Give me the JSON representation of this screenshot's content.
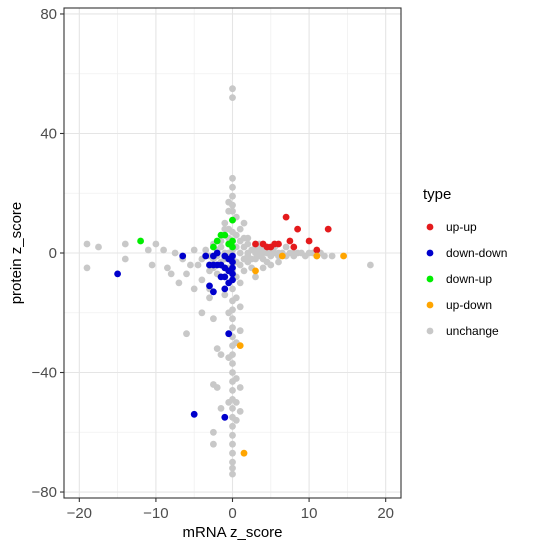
{
  "chart_data": {
    "type": "scatter",
    "xlabel": "mRNA z_score",
    "ylabel": "protein z_score",
    "xlim": [
      -22,
      22
    ],
    "ylim": [
      -82,
      82
    ],
    "x_ticks": [
      -20,
      -10,
      0,
      10,
      20
    ],
    "x_tick_labels": [
      "−20",
      "−10",
      "0",
      "10",
      "20"
    ],
    "y_ticks": [
      -80,
      -40,
      0,
      40,
      80
    ],
    "y_tick_labels": [
      "−80",
      "−40",
      "0",
      "40",
      "80"
    ],
    "grid": true,
    "legend": {
      "title": "type",
      "position": "right",
      "entries": [
        {
          "label": "up-up",
          "color": "#e41a1c"
        },
        {
          "label": "down-down",
          "color": "#0000cc"
        },
        {
          "label": "down-up",
          "color": "#00ee00"
        },
        {
          "label": "up-down",
          "color": "#ffa500"
        },
        {
          "label": "unchange",
          "color": "#c8c8c8"
        }
      ]
    },
    "series": [
      {
        "name": "unchange",
        "color": "#c8c8c8",
        "points": [
          [
            -19,
            3
          ],
          [
            -19,
            -5
          ],
          [
            -17.5,
            2
          ],
          [
            -14,
            -2
          ],
          [
            -14,
            3
          ],
          [
            -11,
            1
          ],
          [
            -10.5,
            -4
          ],
          [
            -10,
            3
          ],
          [
            -9,
            1
          ],
          [
            -8.5,
            -5
          ],
          [
            -8,
            -7
          ],
          [
            -7.5,
            0
          ],
          [
            -7,
            -10
          ],
          [
            -6.5,
            -2
          ],
          [
            -6,
            -7
          ],
          [
            -6,
            -27
          ],
          [
            -5.5,
            -4
          ],
          [
            -5,
            -12
          ],
          [
            -5,
            1
          ],
          [
            -4.5,
            -4
          ],
          [
            -4,
            -2
          ],
          [
            -4,
            -9
          ],
          [
            -4,
            -20
          ],
          [
            -3.5,
            1
          ],
          [
            -3,
            -1
          ],
          [
            -3,
            -4
          ],
          [
            -3,
            -6
          ],
          [
            -3,
            -12
          ],
          [
            -3,
            -15
          ],
          [
            -2.5,
            -2
          ],
          [
            -2.5,
            -5
          ],
          [
            -2.5,
            3
          ],
          [
            -2.5,
            -22
          ],
          [
            -2.5,
            -44
          ],
          [
            -2.5,
            -60
          ],
          [
            -2.5,
            -64
          ],
          [
            -2,
            -1
          ],
          [
            -2,
            1
          ],
          [
            -2,
            -7
          ],
          [
            -2,
            -32
          ],
          [
            -2,
            -45
          ],
          [
            -1.5,
            2
          ],
          [
            -1.5,
            -3
          ],
          [
            -1.5,
            4
          ],
          [
            -1.5,
            -34
          ],
          [
            -1.5,
            -52
          ],
          [
            -1,
            0
          ],
          [
            -1,
            -1
          ],
          [
            -1,
            -2
          ],
          [
            -1,
            -8
          ],
          [
            -1,
            -14
          ],
          [
            -1,
            8
          ],
          [
            -1,
            10
          ],
          [
            -0.5,
            0
          ],
          [
            -0.5,
            3
          ],
          [
            -0.5,
            -5
          ],
          [
            -0.5,
            5
          ],
          [
            -0.5,
            8
          ],
          [
            -0.5,
            14
          ],
          [
            -0.5,
            17
          ],
          [
            -0.5,
            -20
          ],
          [
            -0.5,
            -35
          ],
          [
            -0.5,
            -50
          ],
          [
            0,
            55
          ],
          [
            0,
            52
          ],
          [
            0,
            25
          ],
          [
            0,
            22
          ],
          [
            0,
            19
          ],
          [
            0,
            16
          ],
          [
            0,
            14
          ],
          [
            0,
            11
          ],
          [
            0,
            7
          ],
          [
            0,
            4
          ],
          [
            0,
            1
          ],
          [
            0,
            -2
          ],
          [
            0,
            -3
          ],
          [
            0,
            -6
          ],
          [
            0,
            -9
          ],
          [
            0,
            -12
          ],
          [
            0,
            -16
          ],
          [
            0,
            -19
          ],
          [
            0,
            -22
          ],
          [
            0,
            -25
          ],
          [
            0,
            -28
          ],
          [
            0,
            -31
          ],
          [
            0,
            -34
          ],
          [
            0,
            -37
          ],
          [
            0,
            -40
          ],
          [
            0,
            -43
          ],
          [
            0,
            -46
          ],
          [
            0,
            -49
          ],
          [
            0,
            -52
          ],
          [
            0,
            -55
          ],
          [
            0,
            -58
          ],
          [
            0,
            -61
          ],
          [
            0,
            -64
          ],
          [
            0,
            -67
          ],
          [
            0,
            -70
          ],
          [
            0,
            -72
          ],
          [
            0,
            -74
          ],
          [
            0.5,
            2
          ],
          [
            0.5,
            -3
          ],
          [
            0.5,
            6
          ],
          [
            0.5,
            12
          ],
          [
            0.5,
            -8
          ],
          [
            0.5,
            -15
          ],
          [
            0.5,
            -30
          ],
          [
            0.5,
            -42
          ],
          [
            0.5,
            -50
          ],
          [
            0.5,
            -56
          ],
          [
            1,
            0
          ],
          [
            1,
            4
          ],
          [
            1,
            -4
          ],
          [
            1,
            8
          ],
          [
            1,
            -10
          ],
          [
            1,
            -18
          ],
          [
            1,
            -26
          ],
          [
            1,
            -45
          ],
          [
            1,
            -53
          ],
          [
            1.5,
            2
          ],
          [
            1.5,
            -2
          ],
          [
            1.5,
            5
          ],
          [
            1.5,
            -6
          ],
          [
            1.5,
            10
          ],
          [
            2,
            0
          ],
          [
            2,
            3
          ],
          [
            2,
            -3
          ],
          [
            2,
            -1
          ],
          [
            2,
            5
          ],
          [
            2.5,
            1
          ],
          [
            2.5,
            -2
          ],
          [
            2.5,
            -5
          ],
          [
            3,
            0
          ],
          [
            3,
            2
          ],
          [
            3,
            -2
          ],
          [
            3,
            -8
          ],
          [
            3.5,
            1
          ],
          [
            3.5,
            -1
          ],
          [
            3.5,
            3
          ],
          [
            4,
            0
          ],
          [
            4,
            -2
          ],
          [
            4,
            2
          ],
          [
            4,
            -5
          ],
          [
            4.5,
            0
          ],
          [
            4.5,
            -3
          ],
          [
            5,
            1
          ],
          [
            5,
            -1
          ],
          [
            5,
            -4
          ],
          [
            5.5,
            0
          ],
          [
            5.5,
            2
          ],
          [
            6,
            0
          ],
          [
            6,
            -1
          ],
          [
            6,
            -3
          ],
          [
            6.5,
            0
          ],
          [
            7,
            2
          ],
          [
            7,
            -1
          ],
          [
            7.5,
            0
          ],
          [
            8,
            0
          ],
          [
            8,
            -1
          ],
          [
            8.5,
            0
          ],
          [
            9,
            0
          ],
          [
            9.5,
            -1
          ],
          [
            10,
            0
          ],
          [
            10.5,
            0
          ],
          [
            11,
            -1
          ],
          [
            11.5,
            0
          ],
          [
            12,
            -1
          ],
          [
            13,
            -1
          ],
          [
            18,
            -4
          ]
        ]
      },
      {
        "name": "up-up",
        "color": "#e41a1c",
        "points": [
          [
            3,
            3
          ],
          [
            4,
            3
          ],
          [
            4.5,
            2
          ],
          [
            5,
            2
          ],
          [
            5.5,
            3
          ],
          [
            6,
            3
          ],
          [
            7,
            12
          ],
          [
            7.5,
            4
          ],
          [
            8,
            2
          ],
          [
            8.5,
            8
          ],
          [
            10,
            4
          ],
          [
            11,
            1
          ],
          [
            12.5,
            8
          ]
        ]
      },
      {
        "name": "down-down",
        "color": "#0000cc",
        "points": [
          [
            -15,
            -7
          ],
          [
            -6.5,
            -1
          ],
          [
            -5,
            -54
          ],
          [
            -3.5,
            -1
          ],
          [
            -3,
            -4
          ],
          [
            -3,
            -11
          ],
          [
            -2.5,
            -1
          ],
          [
            -2.5,
            -4
          ],
          [
            -2.5,
            -13
          ],
          [
            -2,
            0
          ],
          [
            -2,
            -4
          ],
          [
            -1.5,
            -4
          ],
          [
            -1.5,
            -8
          ],
          [
            -1,
            -1
          ],
          [
            -1,
            -5
          ],
          [
            -1,
            -8
          ],
          [
            -1,
            -12
          ],
          [
            -1,
            -55
          ],
          [
            -0.5,
            -2
          ],
          [
            -0.5,
            -6
          ],
          [
            -0.5,
            -10
          ],
          [
            -0.5,
            -27
          ],
          [
            0,
            -1
          ],
          [
            0,
            -3
          ],
          [
            0,
            -5
          ],
          [
            0,
            -7
          ],
          [
            0,
            -9
          ]
        ]
      },
      {
        "name": "down-up",
        "color": "#00ee00",
        "points": [
          [
            -12,
            4
          ],
          [
            -2.5,
            2
          ],
          [
            -2,
            4
          ],
          [
            -1.5,
            6
          ],
          [
            -1,
            6
          ],
          [
            -0.5,
            3
          ],
          [
            0,
            2
          ],
          [
            0,
            4
          ],
          [
            0,
            11
          ]
        ]
      },
      {
        "name": "up-down",
        "color": "#ffa500",
        "points": [
          [
            1,
            -31
          ],
          [
            1.5,
            -67
          ],
          [
            3,
            -6
          ],
          [
            6.5,
            -1
          ],
          [
            11,
            -1
          ],
          [
            14.5,
            -1
          ]
        ]
      }
    ]
  }
}
